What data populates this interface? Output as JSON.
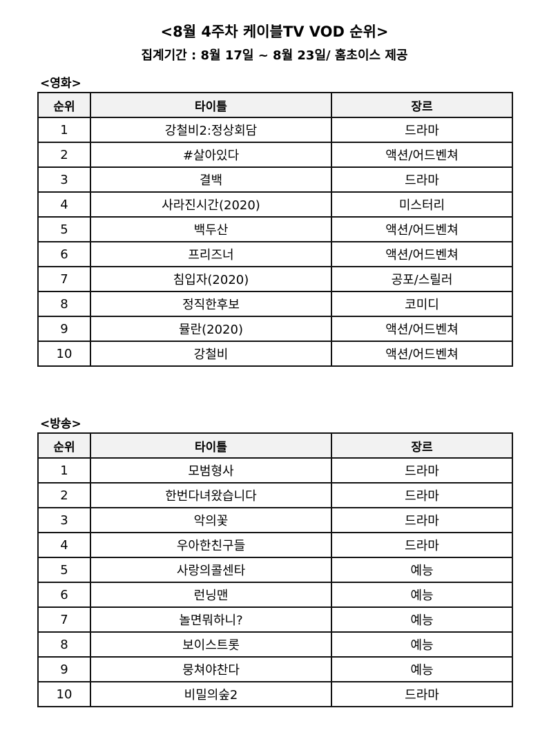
{
  "title": "<8월 4주차 케이블TV VOD 순위>",
  "subtitle": "집계기간 : 8월 17일 ~ 8월 23일/ 홈초이스 제공",
  "columns": [
    "순위",
    "타이틀",
    "장르"
  ],
  "movies": {
    "label": "<영화>",
    "rows": [
      [
        "1",
        "강철비2:정상회담",
        "드라마"
      ],
      [
        "2",
        "#살아있다",
        "액션/어드벤쳐"
      ],
      [
        "3",
        "결백",
        "드라마"
      ],
      [
        "4",
        "사라진시간(2020)",
        "미스터리"
      ],
      [
        "5",
        "백두산",
        "액션/어드벤쳐"
      ],
      [
        "6",
        "프리즈너",
        "액션/어드벤쳐"
      ],
      [
        "7",
        "침입자(2020)",
        "공포/스릴러"
      ],
      [
        "8",
        "정직한후보",
        "코미디"
      ],
      [
        "9",
        "뮬란(2020)",
        "액션/어드벤쳐"
      ],
      [
        "10",
        "강철비",
        "액션/어드벤쳐"
      ]
    ]
  },
  "broadcast": {
    "label": "<방송>",
    "rows": [
      [
        "1",
        "모범형사",
        "드라마"
      ],
      [
        "2",
        "한번다녀왔습니다",
        "드라마"
      ],
      [
        "3",
        "악의꽃",
        "드라마"
      ],
      [
        "4",
        "우아한친구들",
        "드라마"
      ],
      [
        "5",
        "사랑의콜센타",
        "예능"
      ],
      [
        "6",
        "런닝맨",
        "예능"
      ],
      [
        "7",
        "놀면뭐하니?",
        "예능"
      ],
      [
        "8",
        "보이스트롯",
        "예능"
      ],
      [
        "9",
        "뭉쳐야찬다",
        "예능"
      ],
      [
        "10",
        "비밀의숲2",
        "드라마"
      ]
    ]
  }
}
